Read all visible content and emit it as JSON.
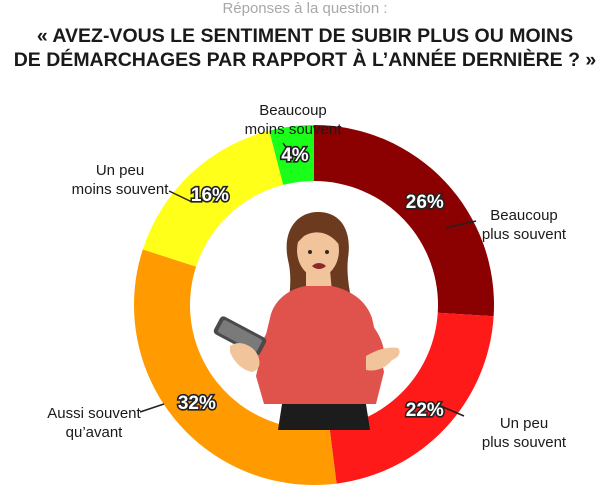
{
  "header": {
    "subtitle": "Réponses à la question :",
    "title_line1": "« AVEZ-VOUS LE SENTIMENT DE SUBIR PLUS OU MOINS",
    "title_line2": "DE DÉMARCHAGES PAR RAPPORT À L’ANNÉE DERNIÈRE ? »"
  },
  "chart_data": {
    "type": "pie",
    "donut": true,
    "slices": [
      {
        "label": [
          "Beaucoup",
          "plus souvent"
        ],
        "value": 26,
        "value_label": "26%",
        "color": "#8b0000"
      },
      {
        "label": [
          "Un peu",
          "plus souvent"
        ],
        "value": 22,
        "value_label": "22%",
        "color": "#ff1a1a"
      },
      {
        "label": [
          "Aussi souvent",
          "qu’avant"
        ],
        "value": 32,
        "value_label": "32%",
        "color": "#ff9a00"
      },
      {
        "label": [
          "Un peu",
          "moins souvent"
        ],
        "value": 16,
        "value_label": "16%",
        "color": "#ffff1a"
      },
      {
        "label": [
          "Beaucoup",
          "moins souvent"
        ],
        "value": 4,
        "value_label": "4%",
        "color": "#1aff1a"
      }
    ]
  }
}
